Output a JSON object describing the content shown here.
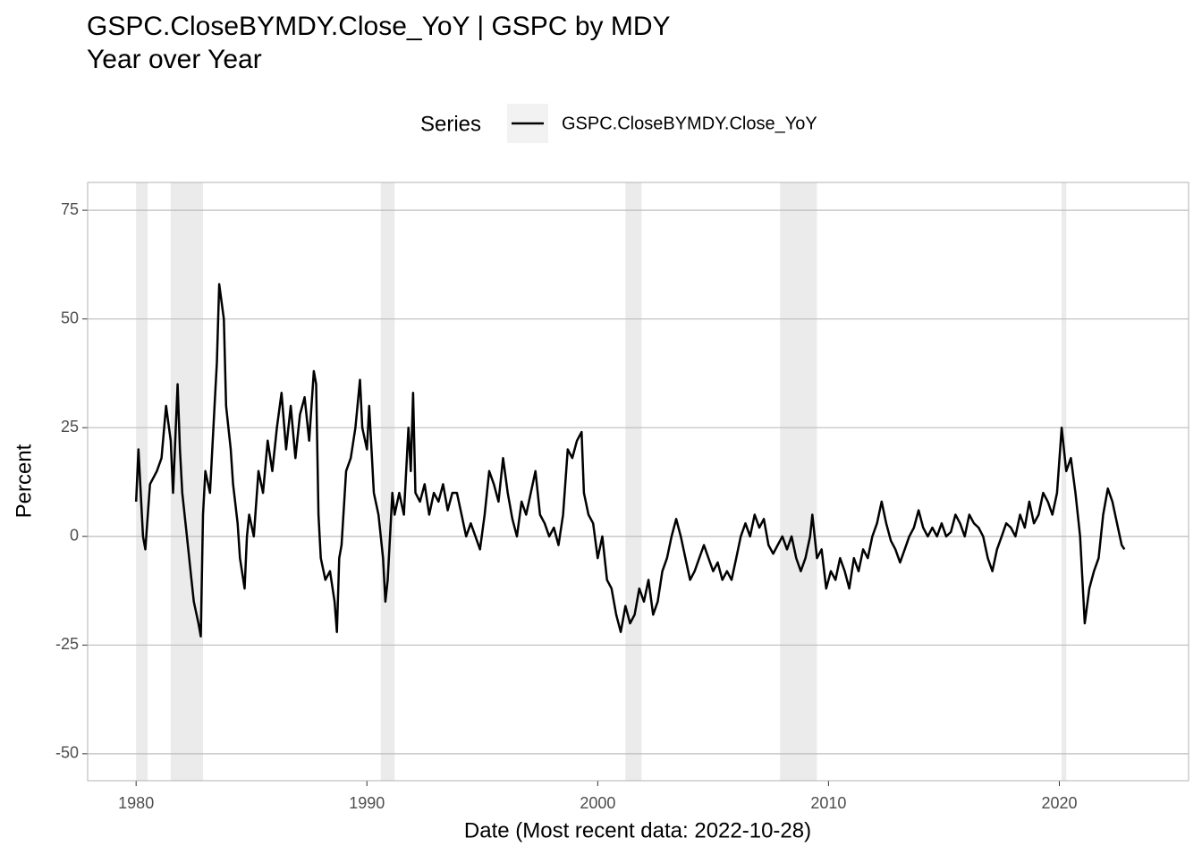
{
  "chart_data": {
    "type": "line",
    "title": "GSPC.CloseBYMDY.Close_YoY | GSPC by MDY",
    "subtitle": "Year over Year",
    "legend_title": "Series",
    "legend_position": "top",
    "x_label": "Date (Most recent data: 2022-10-28)",
    "y_label": "Percent",
    "grid": true,
    "xlim": [
      1977.9,
      2025.6
    ],
    "ylim": [
      -56.2,
      81.4
    ],
    "xticks": [
      1980,
      1990,
      2000,
      2010,
      2020
    ],
    "yticks": [
      -50,
      -25,
      0,
      25,
      50,
      75
    ],
    "shaded_periods": [
      [
        1980.0,
        1980.5
      ],
      [
        1981.5,
        1982.9
      ],
      [
        1990.6,
        1991.2
      ],
      [
        2001.2,
        2001.9
      ],
      [
        2007.9,
        2009.5
      ],
      [
        2020.1,
        2020.3
      ]
    ],
    "shade_color": "#ebebeb",
    "x": [
      1980.0,
      1980.1,
      1980.3,
      1980.4,
      1980.6,
      1980.9,
      1981.1,
      1981.3,
      1981.5,
      1981.6,
      1981.8,
      1981.9,
      1982.0,
      1982.2,
      1982.4,
      1982.5,
      1982.7,
      1982.8,
      1982.9,
      1983.0,
      1983.2,
      1983.4,
      1983.5,
      1983.6,
      1983.8,
      1983.9,
      1984.1,
      1984.2,
      1984.4,
      1984.5,
      1984.7,
      1984.8,
      1984.9,
      1985.1,
      1985.3,
      1985.5,
      1985.7,
      1985.9,
      1986.1,
      1986.3,
      1986.5,
      1986.7,
      1986.9,
      1987.1,
      1987.3,
      1987.5,
      1987.7,
      1987.8,
      1987.9,
      1988.0,
      1988.2,
      1988.4,
      1988.6,
      1988.7,
      1988.8,
      1988.9,
      1989.1,
      1989.3,
      1989.5,
      1989.7,
      1989.8,
      1990.0,
      1990.1,
      1990.3,
      1990.5,
      1990.7,
      1990.8,
      1990.9,
      1991.1,
      1991.2,
      1991.4,
      1991.6,
      1991.8,
      1991.9,
      1992.0,
      1992.1,
      1992.3,
      1992.5,
      1992.7,
      1992.9,
      1993.1,
      1993.3,
      1993.5,
      1993.7,
      1993.9,
      1994.1,
      1994.3,
      1994.5,
      1994.7,
      1994.9,
      1995.1,
      1995.3,
      1995.5,
      1995.7,
      1995.9,
      1996.1,
      1996.3,
      1996.5,
      1996.7,
      1996.9,
      1997.1,
      1997.3,
      1997.5,
      1997.7,
      1997.9,
      1998.1,
      1998.3,
      1998.5,
      1998.7,
      1998.9,
      1999.1,
      1999.3,
      1999.4,
      1999.6,
      1999.8,
      2000.0,
      2000.2,
      2000.4,
      2000.6,
      2000.8,
      2001.0,
      2001.2,
      2001.4,
      2001.6,
      2001.8,
      2002.0,
      2002.2,
      2002.4,
      2002.6,
      2002.8,
      2003.0,
      2003.2,
      2003.4,
      2003.6,
      2003.8,
      2004.0,
      2004.2,
      2004.4,
      2004.6,
      2004.8,
      2005.0,
      2005.2,
      2005.4,
      2005.6,
      2005.8,
      2006.0,
      2006.2,
      2006.4,
      2006.6,
      2006.8,
      2007.0,
      2007.2,
      2007.4,
      2007.6,
      2007.8,
      2008.0,
      2008.2,
      2008.4,
      2008.6,
      2008.8,
      2009.0,
      2009.2,
      2009.3,
      2009.5,
      2009.7,
      2009.9,
      2010.1,
      2010.3,
      2010.5,
      2010.7,
      2010.9,
      2011.1,
      2011.3,
      2011.5,
      2011.7,
      2011.9,
      2012.1,
      2012.3,
      2012.5,
      2012.7,
      2012.9,
      2013.1,
      2013.3,
      2013.5,
      2013.7,
      2013.9,
      2014.1,
      2014.3,
      2014.5,
      2014.7,
      2014.9,
      2015.1,
      2015.3,
      2015.5,
      2015.7,
      2015.9,
      2016.1,
      2016.3,
      2016.5,
      2016.7,
      2016.9,
      2017.1,
      2017.3,
      2017.5,
      2017.7,
      2017.9,
      2018.1,
      2018.3,
      2018.5,
      2018.7,
      2018.9,
      2019.1,
      2019.3,
      2019.5,
      2019.7,
      2019.9,
      2020.1,
      2020.3,
      2020.5,
      2020.7,
      2020.9,
      2021.1,
      2021.3,
      2021.5,
      2021.7,
      2021.9,
      2022.1,
      2022.3,
      2022.5,
      2022.7,
      2022.82
    ],
    "series": [
      {
        "name": "GSPC.CloseBYMDY.Close_YoY",
        "color": "#000000",
        "values": [
          8,
          20,
          0,
          -3,
          12,
          15,
          18,
          30,
          22,
          10,
          35,
          20,
          10,
          0,
          -10,
          -15,
          -20,
          -23,
          5,
          15,
          10,
          30,
          40,
          58,
          50,
          30,
          20,
          12,
          3,
          -5,
          -12,
          0,
          5,
          0,
          15,
          10,
          22,
          15,
          25,
          33,
          20,
          30,
          18,
          28,
          32,
          22,
          38,
          35,
          5,
          -5,
          -10,
          -8,
          -15,
          -22,
          -5,
          -2,
          15,
          18,
          25,
          36,
          25,
          20,
          30,
          10,
          5,
          -5,
          -15,
          -10,
          10,
          5,
          10,
          5,
          25,
          15,
          33,
          10,
          8,
          12,
          5,
          10,
          8,
          12,
          6,
          10,
          10,
          5,
          0,
          3,
          0,
          -3,
          5,
          15,
          12,
          8,
          18,
          10,
          4,
          0,
          8,
          5,
          10,
          15,
          5,
          3,
          0,
          2,
          -2,
          5,
          20,
          18,
          22,
          24,
          10,
          5,
          3,
          -5,
          0,
          -10,
          -12,
          -18,
          -22,
          -16,
          -20,
          -18,
          -12,
          -15,
          -10,
          -18,
          -15,
          -8,
          -5,
          0,
          4,
          0,
          -5,
          -10,
          -8,
          -5,
          -2,
          -5,
          -8,
          -6,
          -10,
          -8,
          -10,
          -5,
          0,
          3,
          0,
          5,
          2,
          4,
          -2,
          -4,
          -2,
          0,
          -3,
          0,
          -5,
          -8,
          -5,
          0,
          5,
          -5,
          -3,
          -12,
          -8,
          -10,
          -5,
          -8,
          -12,
          -5,
          -8,
          -3,
          -5,
          0,
          3,
          8,
          3,
          -1,
          -3,
          -6,
          -3,
          0,
          2,
          6,
          2,
          0,
          2,
          0,
          3,
          0,
          1,
          5,
          3,
          0,
          5,
          3,
          2,
          0,
          -5,
          -8,
          -3,
          0,
          3,
          2,
          0,
          5,
          2,
          8,
          3,
          5,
          10,
          8,
          5,
          10,
          25,
          15,
          18,
          10,
          0,
          -20,
          -12,
          -8,
          -5,
          5,
          11,
          8,
          3,
          -2,
          -3
        ]
      }
    ]
  }
}
